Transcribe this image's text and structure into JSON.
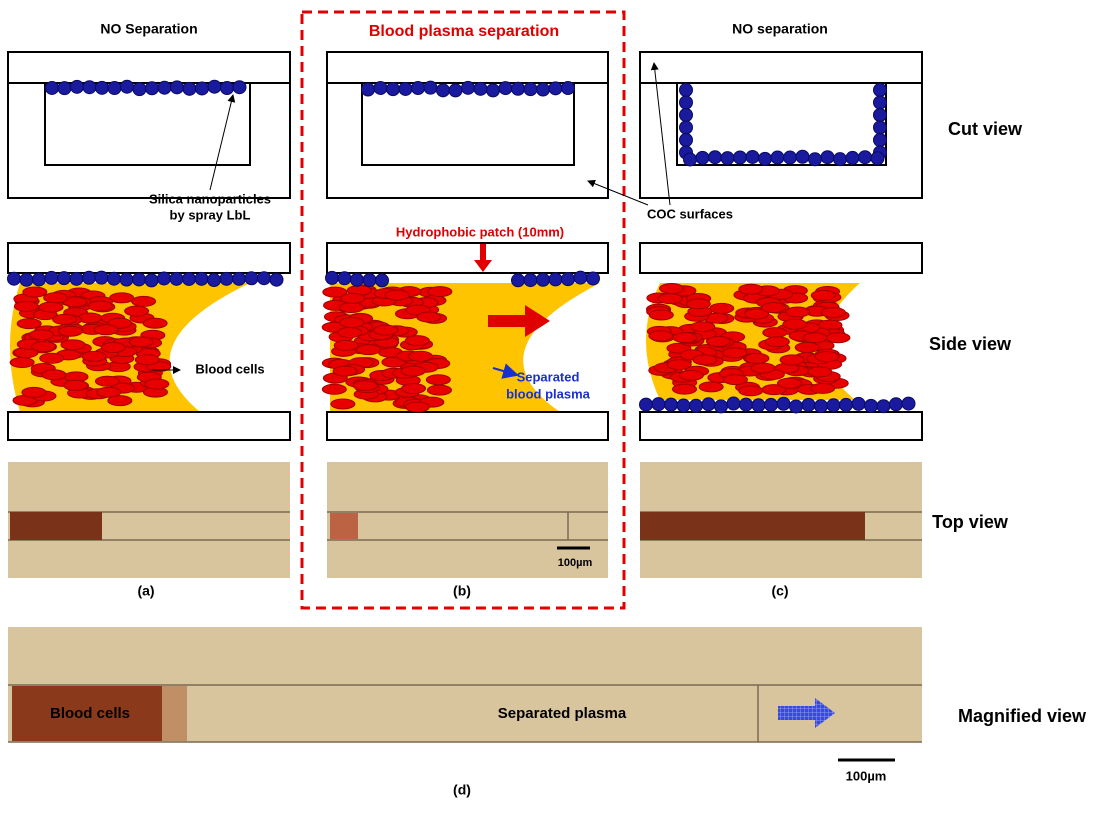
{
  "columns": [
    {
      "title": "NO Separation",
      "label": "(a)"
    },
    {
      "title": "Blood plasma separation",
      "label": "(b)"
    },
    {
      "title": "NO separation",
      "label": "(c)"
    }
  ],
  "row_labels": {
    "cut": "Cut view",
    "side": "Side view",
    "top": "Top view",
    "magnified": "Magnified view"
  },
  "annotations": {
    "silica": [
      "Silica nanoparticles",
      "by spray LbL"
    ],
    "coc": "COC surfaces",
    "patch": "Hydrophobic patch (10mm)",
    "blood_cells": "Blood cells",
    "plasma": [
      "Separated",
      "blood plasma"
    ],
    "scale_b": "100µm"
  },
  "magnified": {
    "blood_cells": "Blood cells",
    "plasma": "Separated plasma",
    "scale": "100µm",
    "label": "(d)"
  }
}
